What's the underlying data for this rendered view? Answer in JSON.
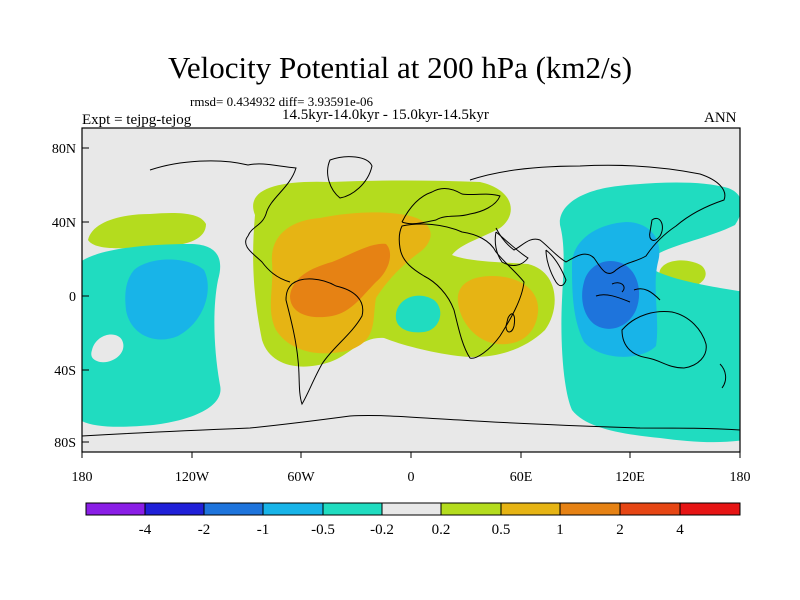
{
  "title": "Velocity Potential at 200 hPa (km2/s)",
  "stats_line": "rmsd= 0.434932 diff= 3.93591e-06",
  "period_line": "14.5kyr-14.0kyr - 15.0kyr-14.5kyr",
  "experiment_label": "Expt = tejpg-tejog",
  "season_label": "ANN",
  "lat_labels": [
    "80N",
    "40N",
    "0",
    "40S",
    "80S"
  ],
  "lon_labels": [
    "180",
    "120W",
    "60W",
    "0",
    "60E",
    "120E",
    "180"
  ],
  "colorbar": {
    "labels": [
      "-4",
      "-2",
      "-1",
      "-0.5",
      "-0.2",
      "0.2",
      "0.5",
      "1",
      "2",
      "4"
    ],
    "colors": [
      "#8a1ee6",
      "#2020d8",
      "#1e74dc",
      "#18b4e8",
      "#20dcc0",
      "#e8e8e8",
      "#b4dc1e",
      "#e6b414",
      "#e68214",
      "#e64614",
      "#e61414"
    ]
  },
  "colors": {
    "background": "#e8e8e8",
    "neg_light": "#20dcc0",
    "neg_mid": "#18b4e8",
    "neg_strong": "#1e74dc",
    "pos_light": "#b4dc1e",
    "pos_mid": "#e6b414",
    "pos_strong": "#e68214"
  }
}
